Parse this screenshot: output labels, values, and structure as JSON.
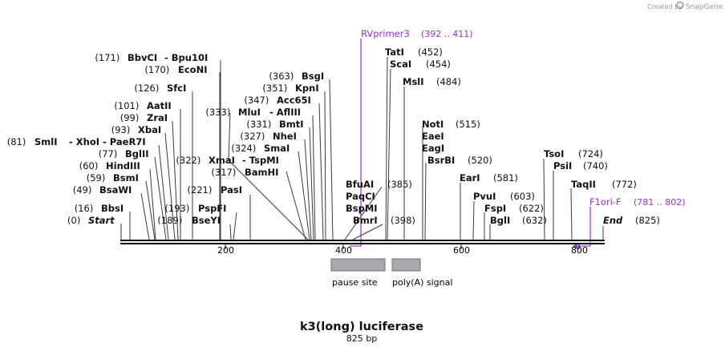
{
  "credit": {
    "created_by": "Created by",
    "brand": "SnapGene"
  },
  "title": "k3(long) luciferase",
  "subtitle": "825 bp",
  "colors": {
    "line": "#111111",
    "primer": "#9B30D0",
    "feature_fill": "#a7aaad",
    "feature_stroke": "#6e7277"
  },
  "ticks": [
    "200",
    "400",
    "600",
    "800"
  ],
  "features": [
    {
      "label": "pause site",
      "start": 393,
      "end": 458
    },
    {
      "label": "poly(A) signal",
      "start": 463,
      "end": 511
    }
  ],
  "primers": [
    {
      "name": "RVprimer3",
      "range": "(392 .. 411)"
    },
    {
      "name": "F1ori-F",
      "range": "(781 .. 802)"
    }
  ],
  "left_sites": [
    {
      "pos": "(171)",
      "name": "BbvCI",
      "alias": "- Bpu10I"
    },
    {
      "pos": "(170)",
      "name": "EcoNI"
    },
    {
      "pos": "(126)",
      "name": "SfcI"
    },
    {
      "pos": "(101)",
      "name": "AatII"
    },
    {
      "pos": "(99)",
      "name": "ZraI"
    },
    {
      "pos": "(93)",
      "name": "XbaI"
    },
    {
      "pos": "(81)",
      "name": "SmlI",
      "alias": "- XhoI - PaeR7I"
    },
    {
      "pos": "(77)",
      "name": "BglII"
    },
    {
      "pos": "(60)",
      "name": "HindIII"
    },
    {
      "pos": "(59)",
      "name": "BsmI"
    },
    {
      "pos": "(49)",
      "name": "BsaWI"
    },
    {
      "pos": "(16)",
      "name": "BbsI"
    },
    {
      "pos": "(0)",
      "name": "Start"
    }
  ],
  "mid_sites": [
    {
      "pos": "(363)",
      "name": "BsgI"
    },
    {
      "pos": "(351)",
      "name": "KpnI"
    },
    {
      "pos": "(347)",
      "name": "Acc65I"
    },
    {
      "pos": "(333)",
      "name": "MluI",
      "alias": "- AflIII"
    },
    {
      "pos": "(331)",
      "name": "BmtI"
    },
    {
      "pos": "(327)",
      "name": "NheI"
    },
    {
      "pos": "(324)",
      "name": "SmaI"
    },
    {
      "pos": "(322)",
      "name": "XmaI",
      "alias": "- TspMI"
    },
    {
      "pos": "(317)",
      "name": "BamHI"
    },
    {
      "pos": "(221)",
      "name": "PasI"
    },
    {
      "pos": "(193)",
      "name": "PspFI"
    },
    {
      "pos": "(189)",
      "name": "BseYI"
    }
  ],
  "right_sites": [
    {
      "pos": "(452)",
      "name": "TatI"
    },
    {
      "pos": "(454)",
      "name": "ScaI"
    },
    {
      "pos": "(484)",
      "name": "MslI"
    },
    {
      "pos": "(385)",
      "name": "BfuAI"
    },
    {
      "name": "PaqCI"
    },
    {
      "name": "BspMI"
    },
    {
      "pos": "(398)",
      "name": "BmrI"
    },
    {
      "pos": "(515)",
      "name": "NotI"
    },
    {
      "name": "EaeI"
    },
    {
      "name": "EagI"
    },
    {
      "pos": "(520)",
      "name": "BsrBI"
    },
    {
      "pos": "(581)",
      "name": "EarI"
    },
    {
      "pos": "(603)",
      "name": "PvuI"
    },
    {
      "pos": "(622)",
      "name": "FspI"
    },
    {
      "pos": "(632)",
      "name": "BglI"
    },
    {
      "pos": "(724)",
      "name": "TsoI"
    },
    {
      "pos": "(740)",
      "name": "PsiI"
    },
    {
      "pos": "(772)",
      "name": "TaqII"
    },
    {
      "pos": "(825)",
      "name": "End"
    }
  ]
}
